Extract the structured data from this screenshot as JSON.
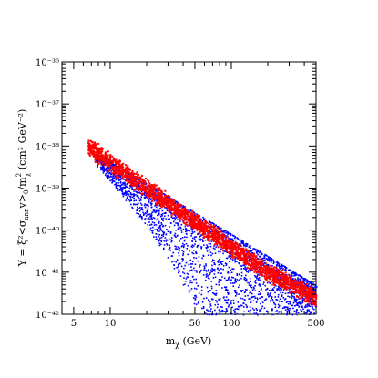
{
  "chart_data": {
    "type": "scatter",
    "title": "",
    "xlabel": "m_χ (GeV)",
    "ylabel": "Υ = ξ²<σ_ann v>₀/m_χ² (cm² GeV⁻²)",
    "x_scale": "log",
    "y_scale": "log",
    "xlim": [
      4,
      500
    ],
    "ylim": [
      1e-42,
      1e-36
    ],
    "x_tick_labels": [
      "5",
      "10",
      "50",
      "100",
      "500"
    ],
    "x_tick_values": [
      5,
      10,
      50,
      100,
      500
    ],
    "y_tick_values": [
      -42,
      -41,
      -40,
      -39,
      -38,
      -37,
      -36
    ],
    "y_tick_labels": [
      "10⁻⁴²",
      "10⁻⁴¹",
      "10⁻⁴⁰",
      "10⁻³⁹",
      "10⁻³⁸",
      "10⁻³⁷",
      "10⁻³⁶"
    ],
    "series": [
      {
        "color": "#0000ff",
        "description_points": [
          [
            8,
            -38.3
          ],
          [
            20,
            -39.2
          ],
          [
            50,
            -40.0
          ],
          [
            100,
            -40.5
          ],
          [
            300,
            -41.2
          ],
          [
            500,
            -41.6
          ]
        ],
        "upper_edge": [
          [
            7,
            -38.1
          ],
          [
            500,
            -41.3
          ]
        ],
        "lower_edge": [
          [
            8,
            -38.5
          ],
          [
            20,
            -39.9
          ],
          [
            40,
            -41.3
          ],
          [
            55,
            -42.0
          ],
          [
            500,
            -42.0
          ]
        ]
      },
      {
        "color": "#ff0000",
        "band_center": [
          [
            6.5,
            -38.0
          ],
          [
            20,
            -39.0
          ],
          [
            50,
            -39.8
          ],
          [
            100,
            -40.4
          ],
          [
            200,
            -41.0
          ],
          [
            500,
            -41.6
          ]
        ],
        "band_width_dex": 0.25
      }
    ]
  },
  "labels": {
    "x_axis_main": "m",
    "x_axis_sub": "χ",
    "x_axis_units": " (GeV)",
    "y_axis_text": "Υ = ξ²<σ",
    "y_axis_sub": "ann",
    "y_axis_rest": "v>",
    "y_axis_sub2": "0",
    "y_axis_end": "/m",
    "y_axis_sup": "2",
    "y_axis_sub3": "χ",
    "y_axis_units": "  (cm² GeV⁻²)"
  }
}
